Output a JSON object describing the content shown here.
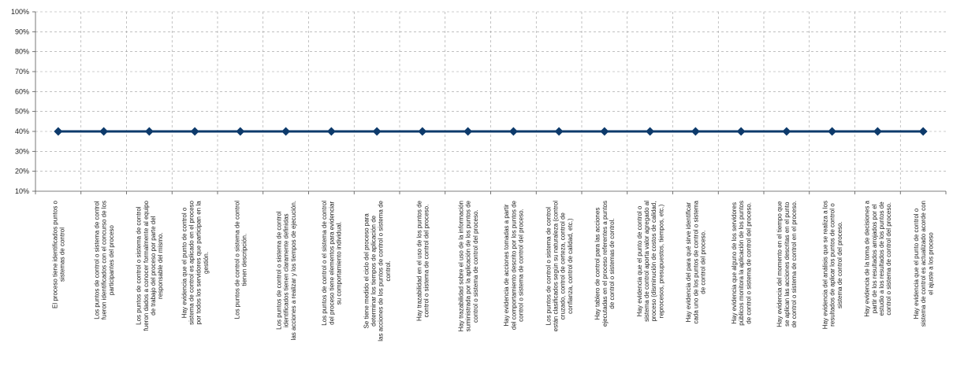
{
  "chart_data": {
    "type": "line",
    "title": "",
    "xlabel": "",
    "ylabel": "",
    "ylim": [
      0.1,
      1.0
    ],
    "yticks": [
      "10%",
      "20%",
      "30%",
      "40%",
      "50%",
      "60%",
      "70%",
      "80%",
      "90%",
      "100%"
    ],
    "grid": true,
    "legend": "none",
    "colors": {
      "line": "#0d3a6b",
      "marker": "#0d3a6b",
      "grid": "#9a9a9a"
    },
    "categories": [
      [
        "El proceso tiene identificados puntos o",
        "sistemas de control"
      ],
      [
        "Los puntos de control o sistema de control",
        "fueron identificados con el concurso de los",
        "participantes del proceso"
      ],
      [
        "Los puntos de control o sistema de control",
        "fueron dados a conocer formalmente al equipo",
        "de trabajo del proceso por parte del",
        "responsable del mismo."
      ],
      [
        "Hay evidencia que el punto de control o",
        "sistema de control es aplicado en el proceso",
        "por todos los servidores que participan en la",
        "gestión."
      ],
      [
        "Los puntos de control o sistema de control",
        "tienen descripción."
      ],
      [
        "Los puntos de control o sistema de control",
        "identificados tienen claramente definidas",
        "las acciones a realizar y los tiempos de ejecución."
      ],
      [
        "Los puntos de control o el sistema de control",
        "del proceso tiene elementos para evidenciar",
        "su comportamiento individual."
      ],
      [
        "Se tiene medido el ciclo del proceso para",
        "determinar los tiempos de aplicación de",
        "las acciones de los puntos de control o sistema de",
        "control."
      ],
      [
        "Hay trazabilidad en el uso de los puntos de",
        "control o sistema de control del proceso."
      ],
      [
        "Hay trazabilidad sobre el uso de la información",
        "suministrada por la aplicación de los puntos de",
        "control o sistema de control del proceso."
      ],
      [
        "Hay evidencia de acciones tomadas a partir",
        "del comportamiento descrito por los puntos de",
        "control o sistema de control del proceso."
      ],
      [
        "Los puntos de control o sistema de control",
        "están clasificados según su naturaleza (control",
        "cruzado, control de certeza, control de",
        "confianza, control de calidad, etc.)"
      ],
      [
        "Hay tablero de control para las acciones",
        "ejecutadas en el proceso referentes a puntos",
        "de control o sistemas de control."
      ],
      [
        "Hay evidencia que el punto de control o",
        "sistema de control aporta valor agregado al",
        "proceso (disminución de costos de calidad,",
        "reprocesos, presupuestos, tiempos, etc.)"
      ],
      [
        "Hay evidencia del para qué sirve identificar",
        "cada uno de los puntos de control o sistema",
        "de control del proceso."
      ],
      [
        "Hay evidencia que alguno de los servidores",
        "públicos monitora la aplicación de los puntos",
        "de control o sistema de control del proceso."
      ],
      [
        "Hay evidencia del momento en el tiempo que",
        "se aplican las acciones descritas en el punto",
        "de control o sistema de control en el proceso."
      ],
      [
        "Hay evidencia del análisis que se realiza a los",
        "resultados de aplicar los puntos de control o",
        "sistema de control del proceso."
      ],
      [
        "Hay evidencia de la toma de decisiones a",
        "partir de los resultados arrojados por el",
        "estudio a los resultados de los puntos de",
        "control o sistema de control del proceso."
      ],
      [
        "Hay evidencia que el punto de control o",
        "sistema de control es actualizado acorde con",
        "el ajuste a los proceso"
      ]
    ],
    "series": [
      {
        "values": [
          0.4,
          0.4,
          0.4,
          0.4,
          0.4,
          0.4,
          0.4,
          0.4,
          0.4,
          0.4,
          0.4,
          0.4,
          0.4,
          0.4,
          0.4,
          0.4,
          0.4,
          0.4,
          0.4,
          0.4
        ]
      }
    ]
  }
}
